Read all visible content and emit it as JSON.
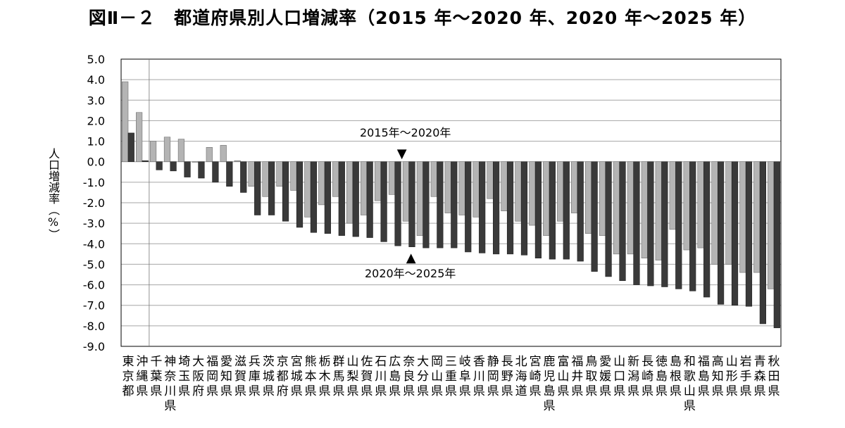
{
  "title": "図Ⅱ－２　都道府県別人口増減率（2015 年～2020 年、2020 年～2025 年）",
  "colors": {
    "series1": "#b4b4b4",
    "series2": "#3a3a3a",
    "grid": "#a6a6a6",
    "axis": "#000000"
  },
  "chart_data": {
    "type": "bar",
    "title": "",
    "ylabel": "人口増減率（%）",
    "ylim": [
      -9.0,
      5.0
    ],
    "yticks": [
      "5.0",
      "4.0",
      "3.0",
      "2.0",
      "1.0",
      "0.0",
      "-1.0",
      "-2.0",
      "-3.0",
      "-4.0",
      "-5.0",
      "-6.0",
      "-7.0",
      "-8.0",
      "-9.0"
    ],
    "grid": true,
    "categories": [
      "東京都",
      "沖縄県",
      "千葉県",
      "神奈川県",
      "埼玉県",
      "大阪府",
      "福岡県",
      "愛知県",
      "滋賀県",
      "兵庫県",
      "茨城県",
      "京都府",
      "宮城県",
      "熊本県",
      "栃木県",
      "群馬県",
      "山梨県",
      "佐賀県",
      "石川県",
      "広島県",
      "奈良県",
      "大分県",
      "岡山県",
      "三重県",
      "岐阜県",
      "香川県",
      "静岡県",
      "長野県",
      "北海道",
      "宮崎県",
      "鹿児島県",
      "富山県",
      "福井県",
      "鳥取県",
      "愛媛県",
      "山口県",
      "新潟県",
      "長崎県",
      "徳島県",
      "島根県",
      "和歌山県",
      "福島県",
      "高知県",
      "山形県",
      "岩手県",
      "青森県",
      "秋田県"
    ],
    "series": [
      {
        "name": "2015年～2020年",
        "values": [
          3.9,
          2.4,
          1.0,
          1.2,
          1.1,
          0.0,
          0.7,
          0.8,
          0.05,
          -1.2,
          -1.7,
          -1.2,
          -1.4,
          -2.7,
          -2.1,
          -1.7,
          -3.0,
          -2.6,
          -1.9,
          -1.6,
          -2.9,
          -3.6,
          -1.7,
          -2.5,
          -2.6,
          -2.7,
          -1.8,
          -2.4,
          -2.9,
          -3.1,
          -3.6,
          -2.9,
          -2.5,
          -3.5,
          -3.6,
          -4.5,
          -4.5,
          -4.7,
          -4.8,
          -3.3,
          -4.3,
          -4.2,
          -5.0,
          -5.0,
          -5.4,
          -5.4,
          -6.2
        ]
      },
      {
        "name": "2020年～2025年",
        "values": [
          1.4,
          0.05,
          -0.4,
          -0.45,
          -0.75,
          -0.8,
          -1.0,
          -1.2,
          -1.5,
          -2.6,
          -2.6,
          -2.9,
          -3.2,
          -3.45,
          -3.5,
          -3.6,
          -3.65,
          -3.7,
          -3.9,
          -4.1,
          -4.15,
          -4.2,
          -4.2,
          -4.2,
          -4.4,
          -4.45,
          -4.5,
          -4.5,
          -4.55,
          -4.7,
          -4.75,
          -4.75,
          -4.85,
          -5.35,
          -5.6,
          -5.8,
          -6.0,
          -6.05,
          -6.1,
          -6.2,
          -6.3,
          -6.6,
          -6.95,
          -7.0,
          -7.05,
          -7.9,
          -8.1
        ]
      }
    ],
    "annotations": [
      {
        "text": "2015年～2020年",
        "arrow": "▼",
        "series": "2015年～2020年",
        "category": "奈良県"
      },
      {
        "text": "2020年～2025年",
        "arrow": "▲",
        "series": "2020年～2025年",
        "category": "奈良県"
      }
    ]
  }
}
